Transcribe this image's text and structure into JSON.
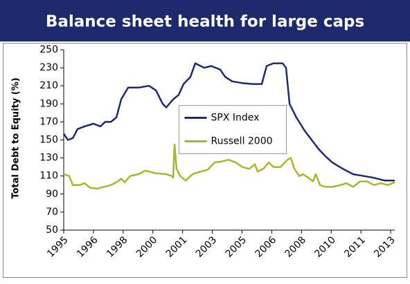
{
  "chart_data": {
    "type": "line",
    "title": "Balance sheet health for large caps",
    "ylabel": "Total Debt to Equity (%)",
    "legend": "center",
    "grid": false,
    "xlim": [
      1995,
      2013.6
    ],
    "xticks": [
      {
        "value": 1995.0,
        "label": "1995"
      },
      {
        "value": 1996.67,
        "label": "1996"
      },
      {
        "value": 1998.34,
        "label": "1998"
      },
      {
        "value": 2000.01,
        "label": "2000"
      },
      {
        "value": 2001.68,
        "label": "2001"
      },
      {
        "value": 2003.35,
        "label": "2003"
      },
      {
        "value": 2005.02,
        "label": "2005"
      },
      {
        "value": 2006.69,
        "label": "2006"
      },
      {
        "value": 2008.36,
        "label": "2008"
      },
      {
        "value": 2010.03,
        "label": "2010"
      },
      {
        "value": 2011.7,
        "label": "2011"
      },
      {
        "value": 2013.37,
        "label": "2013"
      }
    ],
    "ylim": [
      50,
      250
    ],
    "yticks": [
      50,
      70,
      90,
      110,
      130,
      150,
      170,
      190,
      210,
      230,
      250
    ],
    "series": [
      {
        "name": "SPX Index",
        "color": "#1c2a6b",
        "x": [
          1995.0,
          1995.23,
          1995.51,
          1995.78,
          1996.17,
          1996.67,
          1997.06,
          1997.33,
          1997.65,
          1997.96,
          1998.23,
          1998.62,
          1999.2,
          1999.79,
          2000.18,
          2000.56,
          2000.76,
          2001.15,
          2001.46,
          2001.73,
          2002.12,
          2002.39,
          2002.9,
          2003.29,
          2003.79,
          2004.07,
          2004.46,
          2005.04,
          2005.62,
          2006.13,
          2006.4,
          2006.79,
          2007.3,
          2007.49,
          2007.69,
          2008.07,
          2008.54,
          2008.93,
          2009.32,
          2009.7,
          2010.09,
          2010.68,
          2011.26,
          2011.85,
          2012.43,
          2013.02,
          2013.6
        ],
        "values": [
          157,
          150,
          152,
          162,
          165,
          168,
          165,
          170,
          170,
          175,
          195,
          208,
          208,
          210,
          205,
          190,
          186,
          195,
          200,
          212,
          220,
          235,
          230,
          232,
          228,
          220,
          215,
          213,
          212,
          212,
          232,
          235,
          235,
          230,
          190,
          175,
          160,
          150,
          140,
          132,
          125,
          118,
          112,
          110,
          108,
          105,
          105
        ]
      },
      {
        "name": "Russell 2000",
        "color": "#a8b52a",
        "x": [
          1995.0,
          1995.31,
          1995.51,
          1995.89,
          1996.17,
          1996.48,
          1996.87,
          1997.26,
          1997.65,
          1997.96,
          1998.23,
          1998.42,
          1998.74,
          1999.2,
          1999.59,
          2000.18,
          2000.76,
          2001.07,
          2001.15,
          2001.23,
          2001.34,
          2001.54,
          2001.85,
          2002.24,
          2002.7,
          2003.09,
          2003.48,
          2003.87,
          2004.26,
          2004.65,
          2005.04,
          2005.43,
          2005.74,
          2005.89,
          2006.21,
          2006.52,
          2006.79,
          2007.18,
          2007.57,
          2007.76,
          2007.96,
          2008.23,
          2008.46,
          2008.74,
          2009.01,
          2009.16,
          2009.4,
          2009.71,
          2010.09,
          2010.56,
          2010.88,
          2011.26,
          2011.65,
          2012.04,
          2012.43,
          2012.82,
          2013.21,
          2013.6
        ],
        "values": [
          112,
          110,
          100,
          100,
          102,
          97,
          96,
          98,
          100,
          103,
          107,
          103,
          110,
          112,
          116,
          113,
          112,
          110,
          108,
          145,
          118,
          110,
          105,
          112,
          115,
          117,
          125,
          126,
          128,
          125,
          120,
          118,
          123,
          115,
          118,
          125,
          120,
          120,
          128,
          130,
          118,
          110,
          112,
          108,
          104,
          112,
          100,
          98,
          98,
          100,
          102,
          98,
          104,
          104,
          100,
          102,
          100,
          103
        ]
      }
    ]
  }
}
